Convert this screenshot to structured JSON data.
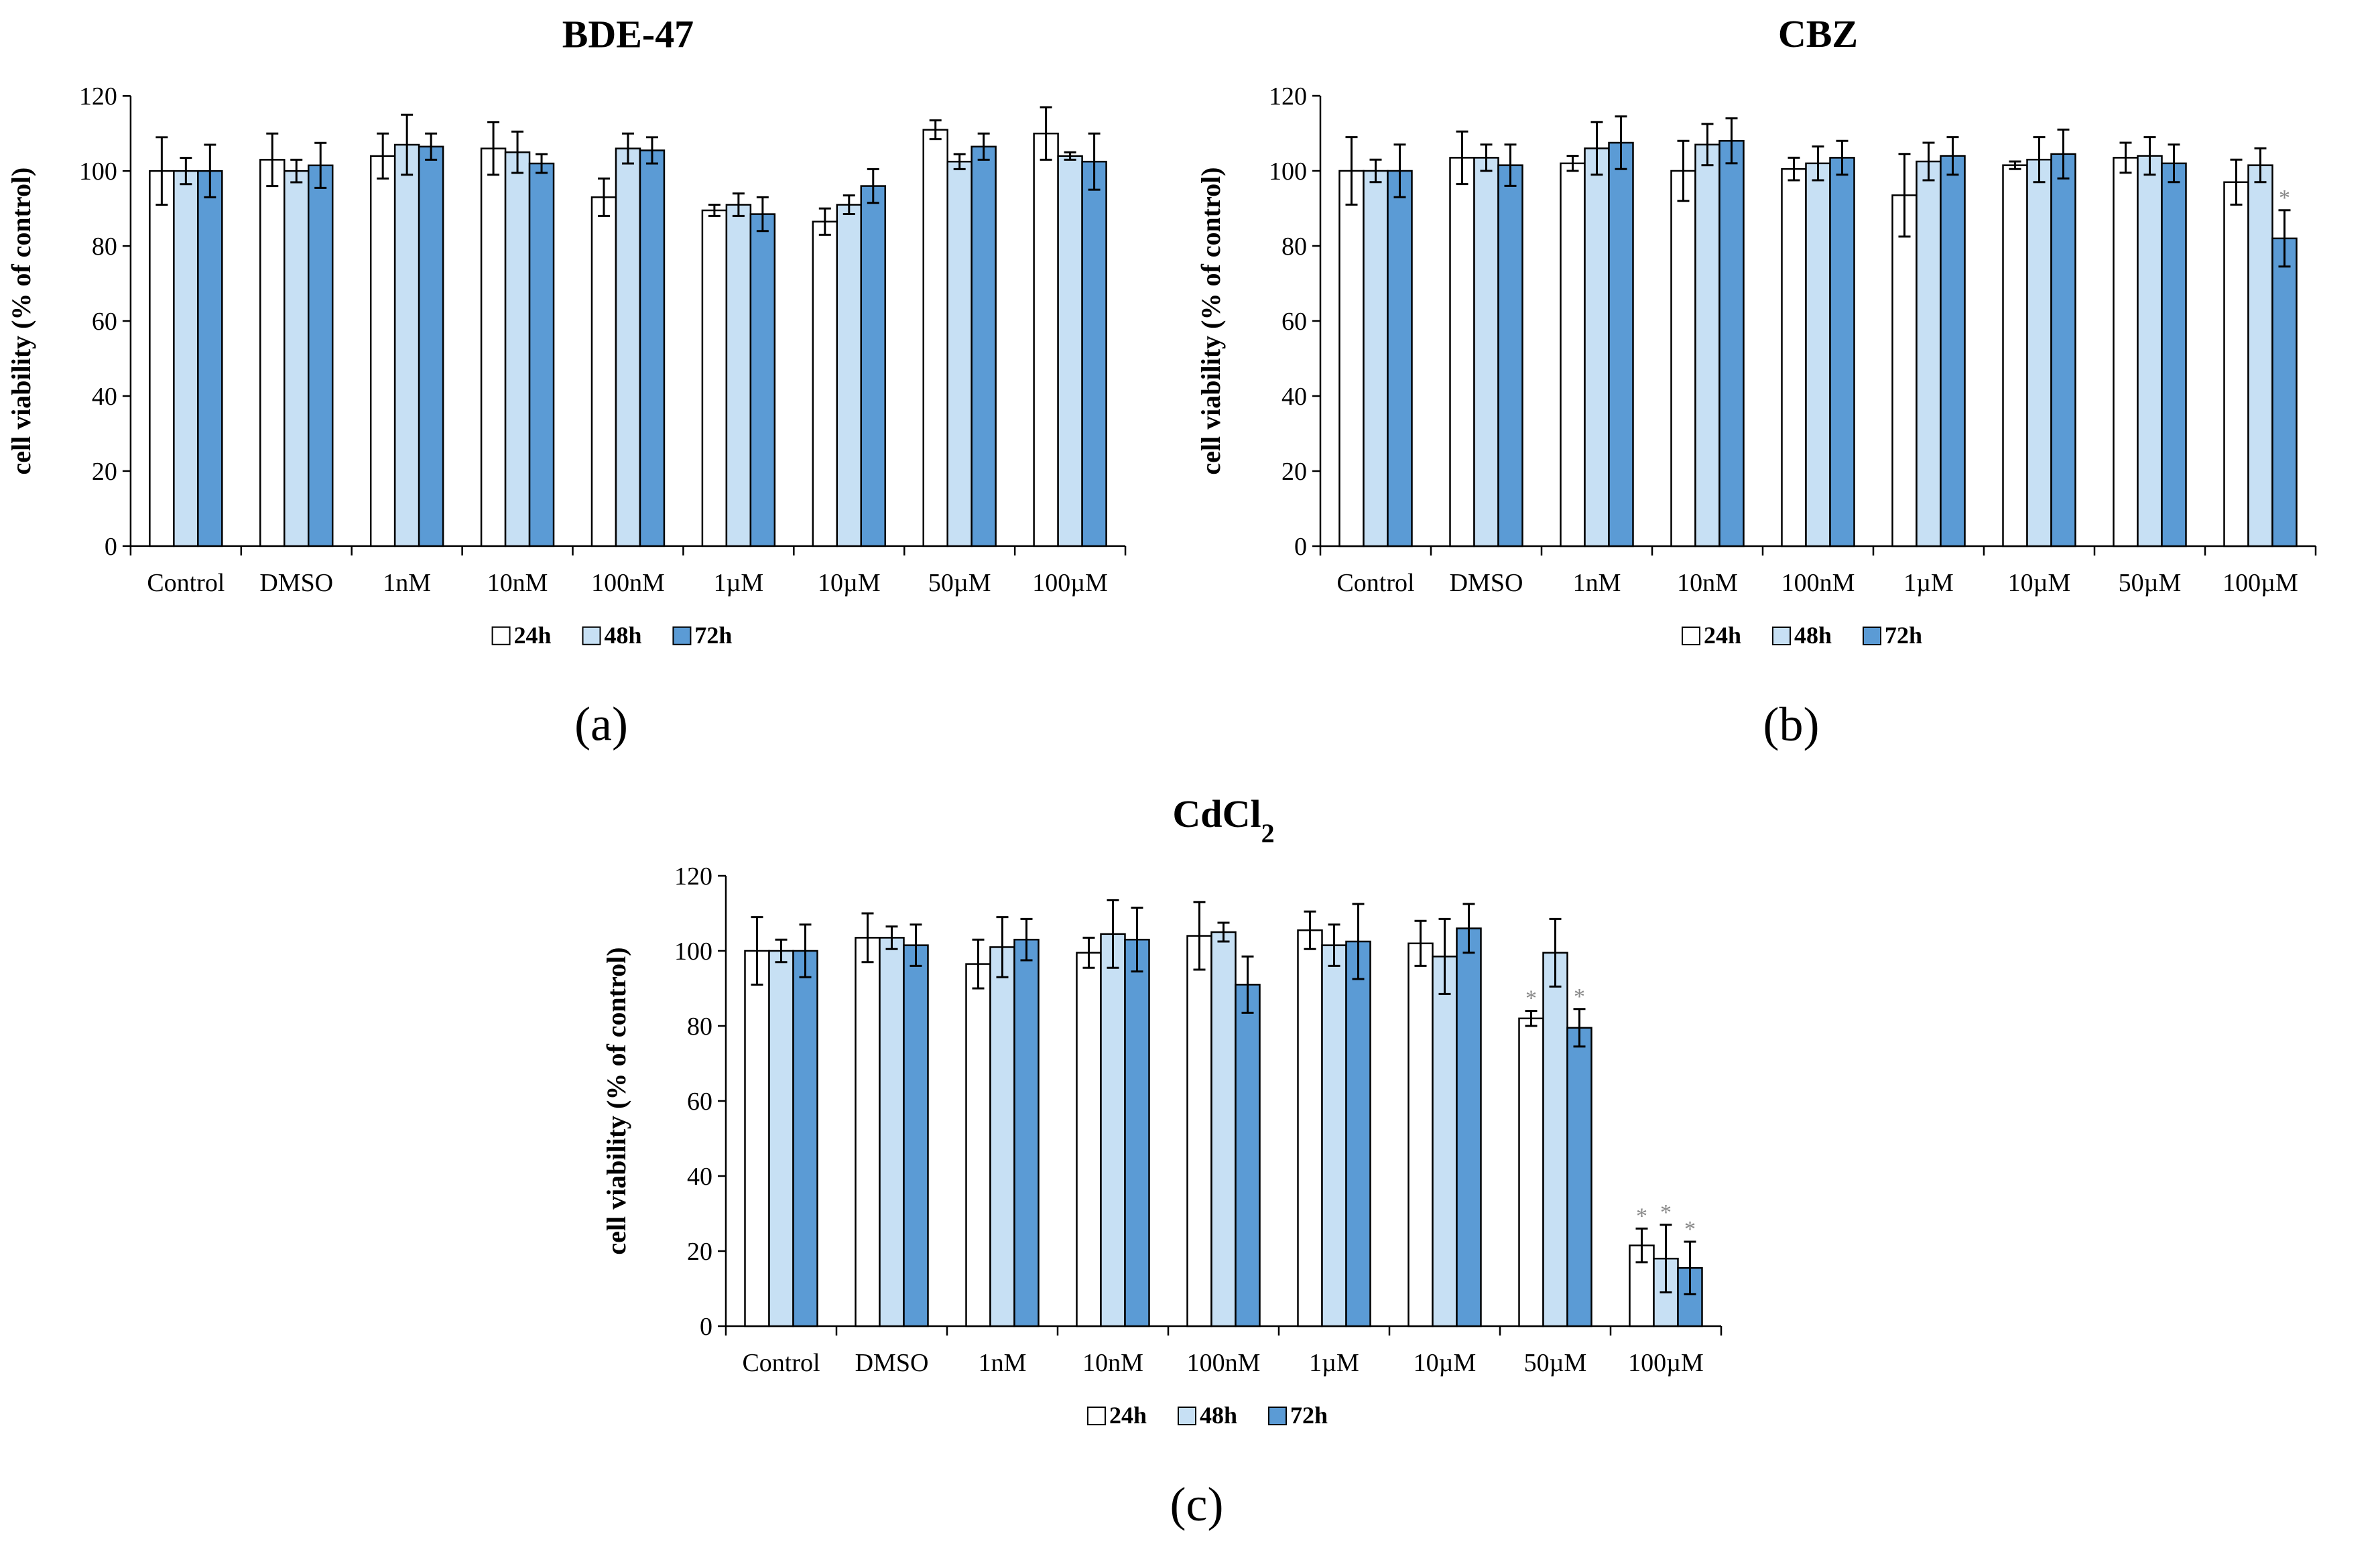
{
  "chart_data": [
    {
      "type": "bar",
      "panel_label": "(a)",
      "title": "BDE-47",
      "title_sub": "",
      "xlabel": "",
      "ylabel": "cell viability (% of control)",
      "ylim": [
        0,
        120
      ],
      "yticks": [
        "0",
        "20",
        "40",
        "60",
        "80",
        "100",
        "120"
      ],
      "categories": [
        "Control",
        "DMSO",
        "1nM",
        "10nM",
        "100nM",
        "1µM",
        "10µM",
        "50µM",
        "100µM"
      ],
      "series": [
        {
          "name": "24h",
          "values": [
            100,
            103,
            104,
            106,
            93,
            89.5,
            86.5,
            111,
            110
          ],
          "errors": [
            9,
            7,
            6,
            7,
            5,
            1.5,
            3.5,
            2.5,
            7
          ],
          "sig": [
            false,
            false,
            false,
            false,
            false,
            false,
            false,
            false,
            false
          ]
        },
        {
          "name": "48h",
          "values": [
            100,
            100,
            107,
            105,
            106,
            91,
            91,
            102.5,
            104
          ],
          "errors": [
            3.5,
            3,
            8,
            5.5,
            4,
            3,
            2.5,
            2,
            1
          ],
          "sig": [
            false,
            false,
            false,
            false,
            false,
            false,
            false,
            false,
            false
          ]
        },
        {
          "name": "72h",
          "values": [
            100,
            101.5,
            106.5,
            102,
            105.5,
            88.5,
            96,
            106.5,
            102.5
          ],
          "errors": [
            7,
            6,
            3.5,
            2.5,
            3.5,
            4.5,
            4.5,
            3.5,
            7.5
          ],
          "sig": [
            false,
            false,
            false,
            false,
            false,
            false,
            false,
            false,
            false
          ]
        }
      ],
      "colors": [
        "#ffffff",
        "#c7e0f4",
        "#5b9bd5"
      ],
      "legend": "bottom"
    },
    {
      "type": "bar",
      "panel_label": "(b)",
      "title": "CBZ",
      "title_sub": "",
      "xlabel": "",
      "ylabel": "cell viability (% of control)",
      "ylim": [
        0,
        120
      ],
      "yticks": [
        "0",
        "20",
        "40",
        "60",
        "80",
        "100",
        "120"
      ],
      "categories": [
        "Control",
        "DMSO",
        "1nM",
        "10nM",
        "100nM",
        "1µM",
        "10µM",
        "50µM",
        "100µM"
      ],
      "series": [
        {
          "name": "24h",
          "values": [
            100,
            103.5,
            102,
            100,
            100.5,
            93.5,
            101.5,
            103.5,
            97
          ],
          "errors": [
            9,
            7,
            2,
            8,
            3,
            11,
            1,
            4,
            6
          ],
          "sig": [
            false,
            false,
            false,
            false,
            false,
            false,
            false,
            false,
            false
          ]
        },
        {
          "name": "48h",
          "values": [
            100,
            103.5,
            106,
            107,
            102,
            102.5,
            103,
            104,
            101.5
          ],
          "errors": [
            3,
            3.5,
            7,
            5.5,
            4.5,
            5,
            6,
            5,
            4.5
          ],
          "sig": [
            false,
            false,
            false,
            false,
            false,
            false,
            false,
            false,
            false
          ]
        },
        {
          "name": "72h",
          "values": [
            100,
            101.5,
            107.5,
            108,
            103.5,
            104,
            104.5,
            102,
            82
          ],
          "errors": [
            7,
            5.5,
            7,
            6,
            4.5,
            5,
            6.5,
            5,
            7.5
          ],
          "sig": [
            false,
            false,
            false,
            false,
            false,
            false,
            false,
            false,
            true
          ]
        }
      ],
      "colors": [
        "#ffffff",
        "#c7e0f4",
        "#5b9bd5"
      ],
      "legend": "bottom"
    },
    {
      "type": "bar",
      "panel_label": "(c)",
      "title": "CdCl",
      "title_sub": "2",
      "xlabel": "",
      "ylabel": "cell viability (% of control)",
      "ylim": [
        0,
        120
      ],
      "yticks": [
        "0",
        "20",
        "40",
        "60",
        "80",
        "100",
        "120"
      ],
      "categories": [
        "Control",
        "DMSO",
        "1nM",
        "10nM",
        "100nM",
        "1µM",
        "10µM",
        "50µM",
        "100µM"
      ],
      "series": [
        {
          "name": "24h",
          "values": [
            100,
            103.5,
            96.5,
            99.5,
            104,
            105.5,
            102,
            82,
            21.5
          ],
          "errors": [
            9,
            6.5,
            6.5,
            4,
            9,
            5,
            6,
            2,
            4.5
          ],
          "sig": [
            false,
            false,
            false,
            false,
            false,
            false,
            false,
            true,
            true
          ]
        },
        {
          "name": "48h",
          "values": [
            100,
            103.5,
            101,
            104.5,
            105,
            101.5,
            98.5,
            99.5,
            18
          ],
          "errors": [
            3,
            3,
            8,
            9,
            2.5,
            5.5,
            10,
            9,
            9
          ],
          "sig": [
            false,
            false,
            false,
            false,
            false,
            false,
            false,
            false,
            true
          ]
        },
        {
          "name": "72h",
          "values": [
            100,
            101.5,
            103,
            103,
            91,
            102.5,
            106,
            79.5,
            15.5
          ],
          "errors": [
            7,
            5.5,
            5.5,
            8.5,
            7.5,
            10,
            6.5,
            5,
            7
          ],
          "sig": [
            false,
            false,
            false,
            false,
            false,
            false,
            false,
            true,
            true
          ]
        }
      ],
      "colors": [
        "#ffffff",
        "#c7e0f4",
        "#5b9bd5"
      ],
      "legend": "bottom"
    }
  ]
}
